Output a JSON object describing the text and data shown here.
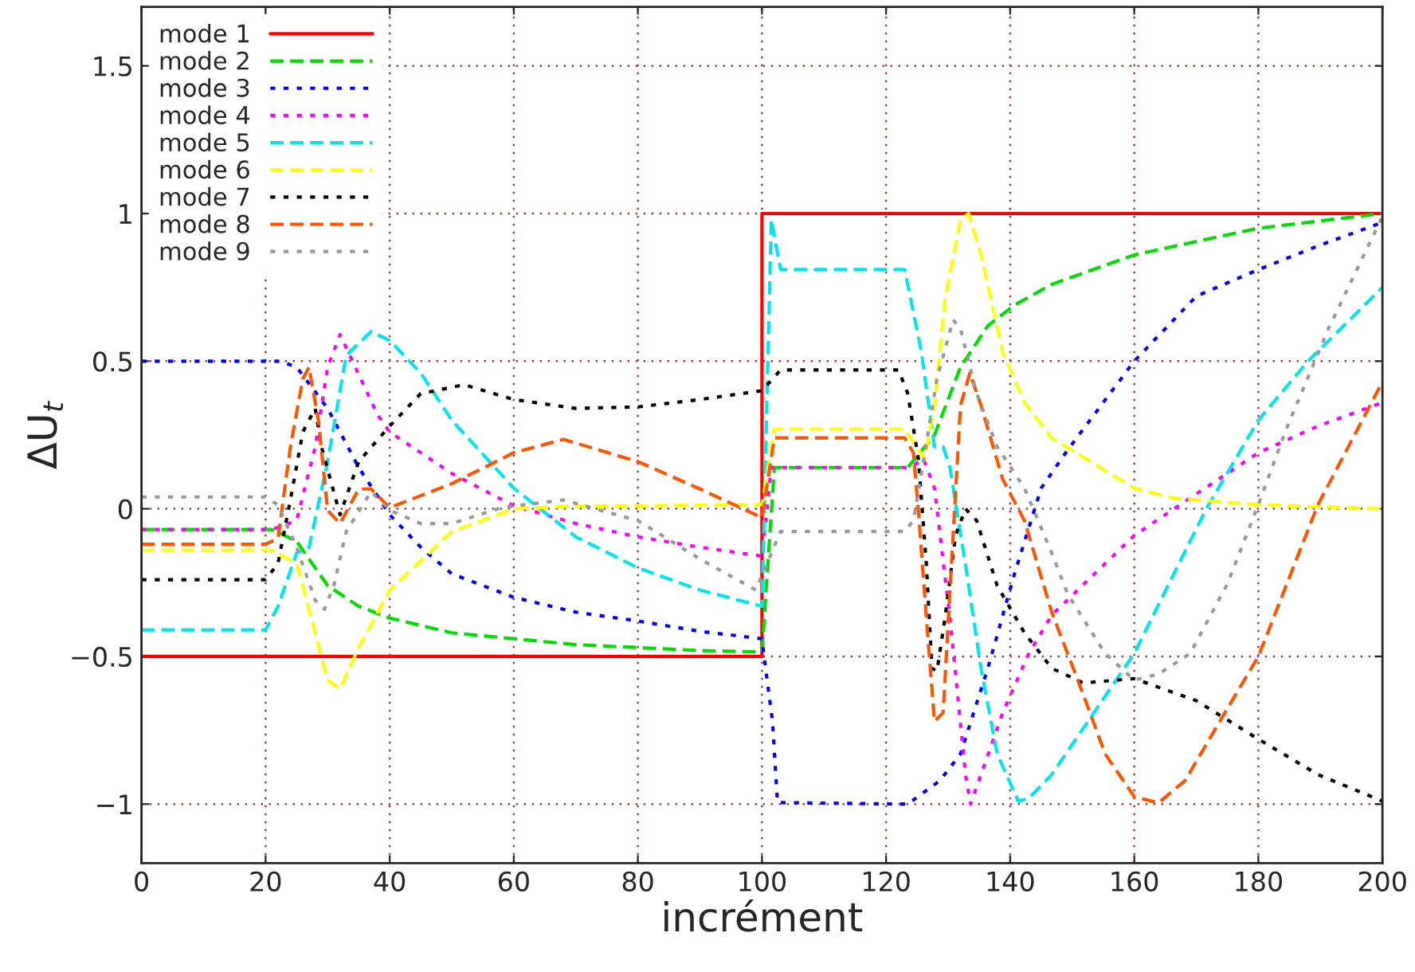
{
  "chart_data": {
    "type": "line",
    "xlabel": "incrément",
    "ylabel": "ΔU$_{t}$",
    "xlim": [
      0,
      200
    ],
    "ylim": [
      -1.2,
      1.7
    ],
    "xticks": [
      0,
      20,
      40,
      60,
      80,
      100,
      120,
      140,
      160,
      180,
      200
    ],
    "yticks": [
      {
        "value": -1,
        "label": "−1"
      },
      {
        "value": -0.5,
        "label": "−0.5"
      },
      0,
      0.5,
      1,
      1.5
    ],
    "grid": true,
    "legend": "top left",
    "series": [
      {
        "name": "mode 1",
        "color": "#ff0000",
        "line_style": "solid",
        "x": [
          0,
          100,
          100,
          200
        ],
        "values": [
          -0.5,
          -0.5,
          1,
          1
        ]
      },
      {
        "name": "mode 2",
        "color": "#00dd00",
        "line_style": "dashed",
        "x": [
          0,
          21,
          25,
          30,
          35,
          40,
          50,
          60,
          70,
          80,
          90,
          100,
          102,
          123.5,
          127.8,
          132,
          136.4,
          140.7,
          146.7,
          160,
          180,
          200
        ],
        "values": [
          -0.07,
          -0.07,
          -0.11,
          -0.26,
          -0.33,
          -0.37,
          -0.42,
          -0.44,
          -0.46,
          -0.47,
          -0.48,
          -0.485,
          0.14,
          0.14,
          0.25,
          0.48,
          0.62,
          0.69,
          0.76,
          0.86,
          0.95,
          1.0
        ]
      },
      {
        "name": "mode 3",
        "color": "#0000ff",
        "line_style": "dotted",
        "x": [
          0,
          22.3,
          25,
          30,
          35,
          40,
          45,
          50,
          60,
          70,
          80,
          90,
          100,
          100.4,
          101.7,
          102.5,
          123.5,
          128.7,
          132,
          136.4,
          140.7,
          145,
          149.3,
          160,
          170,
          180,
          189.6,
          200
        ],
        "values": [
          0.5,
          0.5,
          0.48,
          0.34,
          0.14,
          -0.02,
          -0.13,
          -0.22,
          -0.3,
          -0.35,
          -0.38,
          -0.415,
          -0.44,
          -0.51,
          -0.72,
          -0.995,
          -1.0,
          -0.92,
          -0.83,
          -0.54,
          -0.22,
          0.07,
          0.2,
          0.5,
          0.72,
          0.81,
          0.89,
          0.97
        ]
      },
      {
        "name": "mode 4",
        "color": "#ff00ff",
        "line_style": "dotted",
        "x": [
          0,
          21,
          25,
          28,
          30,
          32,
          34,
          38,
          40,
          50,
          60,
          70,
          80,
          90,
          100,
          101.5,
          124,
          126,
          127.8,
          130.3,
          132.8,
          133.6,
          135.3,
          138.8,
          143,
          146.7,
          160,
          166.4,
          180,
          189.6,
          200
        ],
        "values": [
          -0.07,
          -0.07,
          -0.04,
          0.21,
          0.48,
          0.59,
          0.5,
          0.32,
          0.26,
          0.12,
          0.01,
          -0.05,
          -0.095,
          -0.13,
          -0.16,
          0.14,
          0.14,
          0.17,
          0.07,
          -0.37,
          -0.9,
          -1.0,
          -0.9,
          -0.69,
          -0.49,
          -0.36,
          -0.09,
          0,
          0.19,
          0.28,
          0.36
        ]
      },
      {
        "name": "mode 5",
        "color": "#00e5ee",
        "line_style": "dashed",
        "x": [
          0,
          20,
          22,
          25,
          27,
          30,
          33,
          37,
          40,
          45,
          50,
          60,
          70,
          80,
          90,
          100,
          101.5,
          103,
          123,
          125.7,
          127.8,
          129.2,
          130.3,
          132.8,
          135.3,
          137.9,
          141.3,
          143,
          146.7,
          160,
          171.6,
          180,
          188,
          200
        ],
        "values": [
          -0.41,
          -0.41,
          -0.33,
          -0.15,
          -0.13,
          0.16,
          0.52,
          0.6,
          0.57,
          0.46,
          0.3,
          0.07,
          -0.095,
          -0.2,
          -0.275,
          -0.33,
          0.98,
          0.81,
          0.81,
          0.53,
          0.21,
          0.21,
          0.14,
          -0.19,
          -0.54,
          -0.83,
          -0.99,
          -0.98,
          -0.9,
          -0.49,
          0,
          0.3,
          0.5,
          0.75
        ]
      },
      {
        "name": "mode 6",
        "color": "#ffff00",
        "line_style": "dashed",
        "x": [
          0,
          21,
          25,
          28,
          30,
          32,
          35,
          40,
          50,
          60,
          70,
          80,
          100,
          102,
          123,
          126.2,
          127.8,
          129.5,
          132,
          133.3,
          135.3,
          138.8,
          142.3,
          146.7,
          160,
          166.4,
          180,
          200
        ],
        "values": [
          -0.14,
          -0.14,
          -0.185,
          -0.42,
          -0.58,
          -0.61,
          -0.47,
          -0.275,
          -0.077,
          0,
          0.01,
          0.01,
          0.015,
          0.27,
          0.27,
          0.17,
          0.35,
          0.71,
          0.98,
          1.0,
          0.86,
          0.53,
          0.36,
          0.24,
          0.07,
          0.036,
          0.014,
          0
        ]
      },
      {
        "name": "mode 7",
        "color": "#000000",
        "line_style": "dotted",
        "x": [
          0,
          20,
          22,
          24,
          26,
          28,
          29,
          32,
          35,
          40,
          45,
          52,
          60,
          70,
          80,
          90,
          100,
          103,
          122,
          123.5,
          125.2,
          126.5,
          127.4,
          128.2,
          129.5,
          131.2,
          132.8,
          134.6,
          137.9,
          142.3,
          146.7,
          151.8,
          160,
          170,
          180,
          189.6,
          200
        ],
        "values": [
          -0.24,
          -0.24,
          -0.185,
          0.03,
          0.26,
          0.34,
          0.21,
          -0.02,
          0.16,
          0.28,
          0.39,
          0.42,
          0.37,
          0.34,
          0.345,
          0.37,
          0.4,
          0.47,
          0.47,
          0.39,
          0.17,
          -0.19,
          -0.54,
          -0.55,
          -0.37,
          -0.09,
          0,
          -0.04,
          -0.26,
          -0.42,
          -0.54,
          -0.59,
          -0.575,
          -0.65,
          -0.78,
          -0.9,
          -0.99
        ]
      },
      {
        "name": "mode 8",
        "color": "#ff5500",
        "line_style": "dashed",
        "x": [
          0,
          20,
          22,
          24,
          26,
          27,
          28.5,
          30,
          32,
          35,
          37,
          40,
          50,
          60,
          68,
          80,
          90,
          100,
          102,
          123,
          124.4,
          125.2,
          126.5,
          127.8,
          129.2,
          130.3,
          132,
          133.5,
          135.3,
          138.8,
          142.3,
          146.7,
          151.8,
          155.3,
          160,
          163.9,
          168.2,
          174.2,
          180,
          189.6,
          200
        ],
        "values": [
          -0.12,
          -0.12,
          -0.1,
          0.21,
          0.44,
          0.48,
          0.3,
          -0.005,
          -0.05,
          0.067,
          0.067,
          0.004,
          0.085,
          0.19,
          0.235,
          0.16,
          0.067,
          -0.03,
          0.24,
          0.24,
          0.19,
          -0.005,
          -0.37,
          -0.72,
          -0.69,
          -0.275,
          0.35,
          0.46,
          0.35,
          0.1,
          -0.04,
          -0.35,
          -0.63,
          -0.83,
          -0.975,
          -0.996,
          -0.92,
          -0.705,
          -0.5,
          0.014,
          0.43
        ]
      },
      {
        "name": "mode 9",
        "color": "#999999",
        "line_style": "dotted",
        "x": [
          0,
          20,
          22,
          25,
          28,
          29.5,
          31,
          33,
          37,
          40,
          45,
          50,
          58,
          68,
          80,
          90,
          99,
          103,
          123,
          124.4,
          126.1,
          128.2,
          130.8,
          132,
          134.6,
          137.9,
          142.3,
          146.7,
          149.3,
          155.3,
          160,
          163.9,
          169,
          175,
          180,
          184.5,
          191.3,
          200
        ],
        "values": [
          0.04,
          0.04,
          0.013,
          -0.13,
          -0.31,
          -0.34,
          -0.26,
          -0.077,
          0.058,
          -0.005,
          -0.05,
          -0.05,
          0.004,
          0.03,
          -0.04,
          -0.17,
          -0.275,
          -0.077,
          -0.077,
          -0.04,
          0.17,
          0.44,
          0.64,
          0.61,
          0.39,
          0.21,
          0.07,
          -0.15,
          -0.29,
          -0.49,
          -0.58,
          -0.56,
          -0.49,
          -0.255,
          0.014,
          0.27,
          0.61,
          0.99
        ]
      }
    ]
  }
}
